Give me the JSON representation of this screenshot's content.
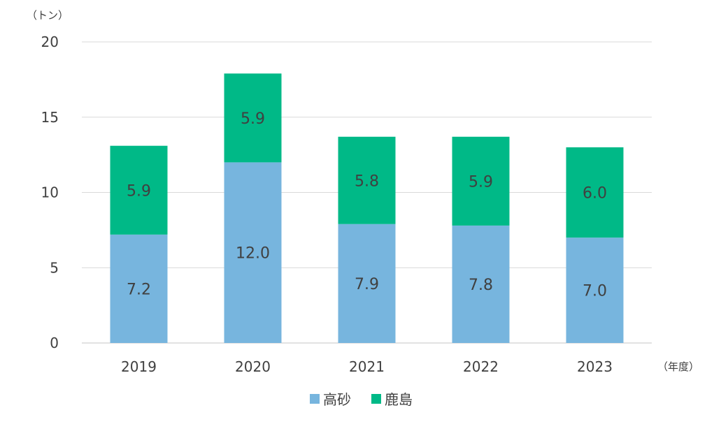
{
  "chart_data": {
    "type": "bar",
    "stacked": true,
    "y_unit_label": "（トン）",
    "x_unit_label": "（年度）",
    "categories": [
      "2019",
      "2020",
      "2021",
      "2022",
      "2023"
    ],
    "series": [
      {
        "name": "高砂",
        "color": "#77b5de",
        "values": [
          7.2,
          12.0,
          7.9,
          7.8,
          7.0
        ],
        "labels": [
          "7.2",
          "12.0",
          "7.9",
          "7.8",
          "7.0"
        ]
      },
      {
        "name": "鹿島",
        "color": "#00b987",
        "values": [
          5.9,
          5.9,
          5.8,
          5.9,
          6.0
        ],
        "labels": [
          "5.9",
          "5.9",
          "5.8",
          "5.9",
          "6.0"
        ]
      }
    ],
    "ylim": [
      0,
      20
    ],
    "yticks": [
      "0",
      "5",
      "10",
      "15",
      "20"
    ],
    "grid": true,
    "legend_position": "bottom"
  }
}
